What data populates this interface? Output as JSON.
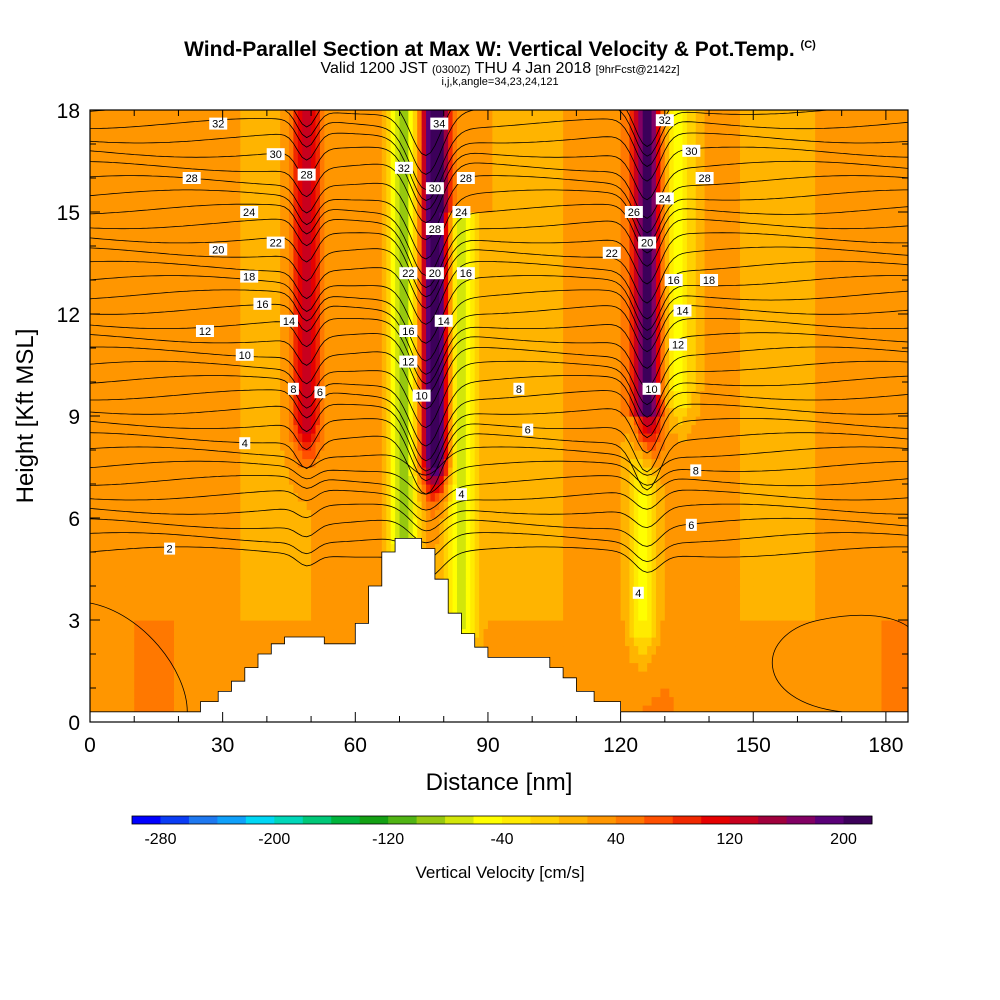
{
  "title": {
    "main": "Wind-Parallel Section at Max W: Vertical Velocity & Pot.Temp.",
    "copyright": "(C)",
    "valid_a": "Valid 1200 JST",
    "valid_utc": "(0300Z)",
    "valid_b": "THU 4 Jan 2018",
    "forecast": "[9hrFcst@2142z]",
    "indices": "i,j,k,angle=34,23,24,121"
  },
  "chart_data": {
    "type": "heatmap",
    "xlabel": "Distance [nm]",
    "ylabel": "Height [Kft MSL]",
    "xlim": [
      0,
      185
    ],
    "ylim": [
      0,
      18
    ],
    "xticks": [
      0,
      30,
      60,
      90,
      120,
      150,
      180
    ],
    "yticks": [
      0,
      3,
      6,
      9,
      12,
      15,
      18
    ],
    "colorbar": {
      "label": "Vertical Velocity [cm/s]",
      "ticks": [
        -280,
        -200,
        -120,
        -40,
        40,
        120,
        200
      ],
      "min": -300,
      "max": 220,
      "colors": [
        "#0000ff",
        "#0a3cf5",
        "#1e78f0",
        "#0fa0fa",
        "#00d7f5",
        "#00d7b9",
        "#00c878",
        "#00b43c",
        "#14a014",
        "#50b414",
        "#96c80f",
        "#d2e60a",
        "#ffff00",
        "#ffeb00",
        "#ffd200",
        "#ffb400",
        "#ff9600",
        "#ff7800",
        "#ff5000",
        "#f02800",
        "#e60000",
        "#c8001e",
        "#a0003c",
        "#820064",
        "#5a0078",
        "#3c005a"
      ]
    },
    "velocity_features": [
      {
        "kind": "updraft",
        "x_center": 49,
        "height_range": [
          9,
          18
        ],
        "peak_cms": 120
      },
      {
        "kind": "downdraft",
        "x_center": 71,
        "height_range": [
          5.5,
          18
        ],
        "peak_cms": -120
      },
      {
        "kind": "updraft",
        "x_center": 78,
        "height_range": [
          8,
          18
        ],
        "peak_cms": 220
      },
      {
        "kind": "downdraft",
        "x_center": 84,
        "height_range": [
          3,
          15
        ],
        "peak_cms": -100
      },
      {
        "kind": "updraft",
        "x_center": 126,
        "height_range": [
          9,
          18
        ],
        "peak_cms": 180
      },
      {
        "kind": "downdraft",
        "x_center": 133,
        "height_range": [
          10,
          18
        ],
        "peak_cms": -80
      },
      {
        "kind": "downdraft",
        "x_center": 125,
        "height_range": [
          3,
          9
        ],
        "peak_cms": -80
      }
    ],
    "contour_labels": [
      {
        "text": "32",
        "x": 29,
        "y": 17.6
      },
      {
        "text": "30",
        "x": 42,
        "y": 16.7
      },
      {
        "text": "28",
        "x": 23,
        "y": 16.0
      },
      {
        "text": "28",
        "x": 49,
        "y": 16.1
      },
      {
        "text": "24",
        "x": 36,
        "y": 15.0
      },
      {
        "text": "22",
        "x": 42,
        "y": 14.1
      },
      {
        "text": "20",
        "x": 29,
        "y": 13.9
      },
      {
        "text": "18",
        "x": 36,
        "y": 13.1
      },
      {
        "text": "16",
        "x": 39,
        "y": 12.3
      },
      {
        "text": "14",
        "x": 45,
        "y": 11.8
      },
      {
        "text": "12",
        "x": 26,
        "y": 11.5
      },
      {
        "text": "10",
        "x": 35,
        "y": 10.8
      },
      {
        "text": "8",
        "x": 46,
        "y": 9.8
      },
      {
        "text": "6",
        "x": 52,
        "y": 9.7
      },
      {
        "text": "4",
        "x": 35,
        "y": 8.2
      },
      {
        "text": "2",
        "x": 18,
        "y": 5.1
      },
      {
        "text": "34",
        "x": 79,
        "y": 17.6
      },
      {
        "text": "32",
        "x": 71,
        "y": 16.3
      },
      {
        "text": "30",
        "x": 78,
        "y": 15.7
      },
      {
        "text": "28",
        "x": 85,
        "y": 16.0
      },
      {
        "text": "28",
        "x": 78,
        "y": 14.5
      },
      {
        "text": "24",
        "x": 84,
        "y": 15.0
      },
      {
        "text": "22",
        "x": 72,
        "y": 13.2
      },
      {
        "text": "20",
        "x": 78,
        "y": 13.2
      },
      {
        "text": "16",
        "x": 85,
        "y": 13.2
      },
      {
        "text": "16",
        "x": 72,
        "y": 11.5
      },
      {
        "text": "14",
        "x": 80,
        "y": 11.8
      },
      {
        "text": "12",
        "x": 72,
        "y": 10.6
      },
      {
        "text": "10",
        "x": 75,
        "y": 9.6
      },
      {
        "text": "8",
        "x": 97,
        "y": 9.8
      },
      {
        "text": "6",
        "x": 99,
        "y": 8.6
      },
      {
        "text": "4",
        "x": 84,
        "y": 6.7
      },
      {
        "text": "32",
        "x": 130,
        "y": 17.7
      },
      {
        "text": "30",
        "x": 136,
        "y": 16.8
      },
      {
        "text": "28",
        "x": 139,
        "y": 16.0
      },
      {
        "text": "26",
        "x": 123,
        "y": 15.0
      },
      {
        "text": "24",
        "x": 130,
        "y": 15.4
      },
      {
        "text": "22",
        "x": 118,
        "y": 13.8
      },
      {
        "text": "20",
        "x": 126,
        "y": 14.1
      },
      {
        "text": "16",
        "x": 132,
        "y": 13.0
      },
      {
        "text": "18",
        "x": 140,
        "y": 13.0
      },
      {
        "text": "14",
        "x": 134,
        "y": 12.1
      },
      {
        "text": "12",
        "x": 133,
        "y": 11.1
      },
      {
        "text": "10",
        "x": 127,
        "y": 9.8
      },
      {
        "text": "8",
        "x": 137,
        "y": 7.4
      },
      {
        "text": "6",
        "x": 136,
        "y": 5.8
      },
      {
        "text": "4",
        "x": 124,
        "y": 3.8
      }
    ],
    "terrain": [
      [
        0,
        0.3
      ],
      [
        25,
        0.3
      ],
      [
        25,
        0.6
      ],
      [
        29,
        0.6
      ],
      [
        29,
        0.9
      ],
      [
        32,
        0.9
      ],
      [
        32,
        1.2
      ],
      [
        35,
        1.2
      ],
      [
        35,
        1.6
      ],
      [
        38,
        1.6
      ],
      [
        38,
        2.0
      ],
      [
        41,
        2.0
      ],
      [
        41,
        2.3
      ],
      [
        44,
        2.3
      ],
      [
        44,
        2.5
      ],
      [
        53,
        2.5
      ],
      [
        53,
        2.3
      ],
      [
        60,
        2.3
      ],
      [
        60,
        2.9
      ],
      [
        63,
        2.9
      ],
      [
        63,
        4.0
      ],
      [
        66,
        4.0
      ],
      [
        66,
        5.0
      ],
      [
        69,
        5.0
      ],
      [
        69,
        5.4
      ],
      [
        75,
        5.4
      ],
      [
        75,
        5.1
      ],
      [
        78,
        5.1
      ],
      [
        78,
        4.2
      ],
      [
        81,
        4.2
      ],
      [
        81,
        3.2
      ],
      [
        84,
        3.2
      ],
      [
        84,
        2.6
      ],
      [
        87,
        2.6
      ],
      [
        87,
        2.2
      ],
      [
        90,
        2.2
      ],
      [
        90,
        1.9
      ],
      [
        104,
        1.9
      ],
      [
        104,
        1.6
      ],
      [
        107,
        1.6
      ],
      [
        107,
        1.3
      ],
      [
        110,
        1.3
      ],
      [
        110,
        0.9
      ],
      [
        114,
        0.9
      ],
      [
        114,
        0.6
      ],
      [
        120,
        0.6
      ],
      [
        120,
        0.3
      ],
      [
        185,
        0.3
      ]
    ]
  }
}
